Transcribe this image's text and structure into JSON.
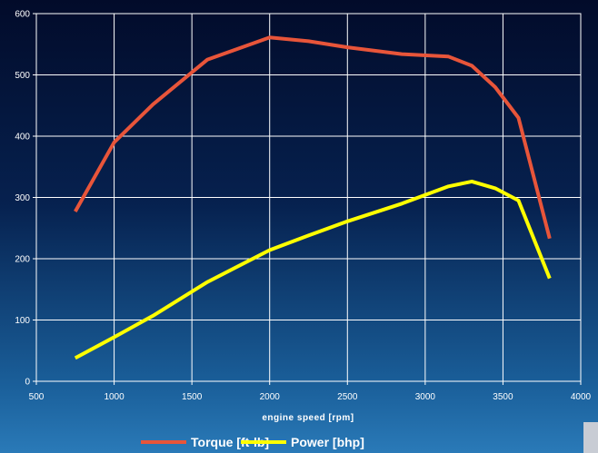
{
  "chart_data": {
    "type": "line",
    "title": "",
    "xlabel": "engine speed [rpm]",
    "ylabel": "",
    "xlim": [
      500,
      4000
    ],
    "ylim": [
      0,
      600
    ],
    "xticks": [
      500,
      1000,
      1500,
      2000,
      2500,
      3000,
      3500,
      4000
    ],
    "yticks": [
      0,
      100,
      200,
      300,
      400,
      500,
      600
    ],
    "grid": true,
    "legend_position": "bottom",
    "series": [
      {
        "name": "Torque [ft-lb]",
        "color": "#e8553a",
        "x": [
          750,
          1000,
          1250,
          1600,
          2000,
          2250,
          2500,
          2850,
          3150,
          3300,
          3450,
          3600,
          3800
        ],
        "y": [
          277,
          390,
          452,
          525,
          561,
          555,
          545,
          534,
          530,
          515,
          480,
          430,
          233
        ]
      },
      {
        "name": "Power [bhp]",
        "color": "#ffff00",
        "x": [
          750,
          1000,
          1250,
          1600,
          2000,
          2250,
          2500,
          2850,
          3150,
          3300,
          3450,
          3600,
          3800
        ],
        "y": [
          38,
          72,
          107,
          162,
          214,
          238,
          261,
          290,
          318,
          326,
          315,
          295,
          168
        ]
      }
    ]
  }
}
